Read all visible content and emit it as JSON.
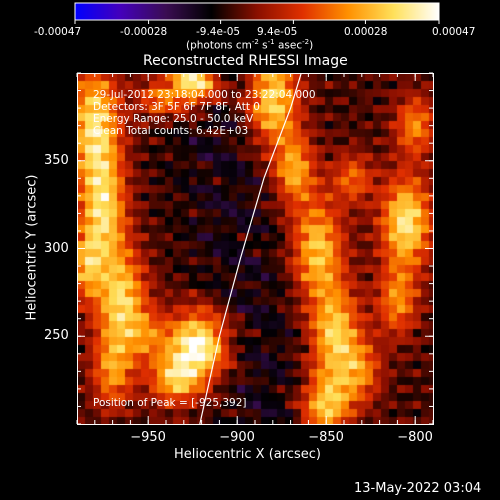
{
  "colorbar": {
    "ticks": [
      "-0.00047",
      "-0.00028",
      "-9.4e-05",
      "9.4e-05",
      "0.00028",
      "0.00047"
    ],
    "tick_values": [
      -0.00047,
      -0.00028,
      -9.4e-05,
      9.4e-05,
      0.00028,
      0.00047
    ],
    "range": [
      -0.00047,
      0.00047
    ],
    "units_main": "(photons cm",
    "units_sup1": "-2",
    "units_mid": " s",
    "units_sup2": "-1",
    "units_tail": " asec",
    "units_sup3": "-2",
    "units_close": ")",
    "colormap": [
      "#0000ff",
      "#4400bb",
      "#3a0d52",
      "#000000",
      "#8a0f00",
      "#e03000",
      "#ff9000",
      "#ffe05a",
      "#ffffff"
    ]
  },
  "chart_data": {
    "type": "heatmap",
    "title": "Reconstructed RHESSI Image",
    "xlabel": "Heliocentric X (arcsec)",
    "ylabel": "Heliocentric Y (arcsec)",
    "xlim": [
      -990,
      -790
    ],
    "ylim": [
      200,
      400
    ],
    "xticks": [
      -950,
      -900,
      -850,
      -800
    ],
    "xtick_labels": [
      "−950",
      "−900",
      "−850",
      "−800"
    ],
    "yticks": [
      250,
      300,
      350
    ],
    "ytick_labels": [
      "250",
      "300",
      "350"
    ],
    "limb_curve": [
      [
        -921,
        200
      ],
      [
        -910,
        250
      ],
      [
        -898,
        295
      ],
      [
        -885,
        340
      ],
      [
        -870,
        380
      ],
      [
        -864,
        400
      ]
    ],
    "peak": [
      -925,
      392
    ],
    "info_lines": [
      "29-Jul-2012 23:18:04.000 to 23:22:04.000",
      "Detectors: 3F 5F 6F 7F 8F, Att 0",
      "Energy Range: 25.0 - 50.0 keV",
      "Clean    Total counts: 6.42E+03"
    ],
    "peak_label": "Position of Peak = [-925,392]"
  },
  "footer": {
    "timestamp": "13-May-2022 03:04"
  }
}
